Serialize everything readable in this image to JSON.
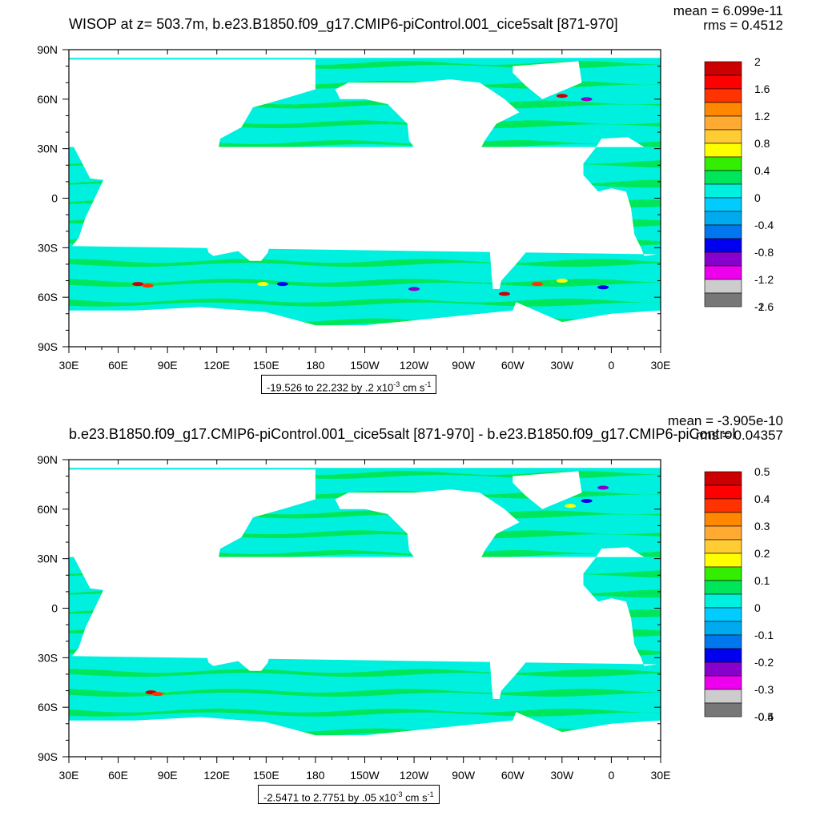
{
  "colors": {
    "land": "#ffffff",
    "ocean_neg": "#00f0e0",
    "ocean_pos": "#00e65a",
    "palette": [
      "#777777",
      "#cccccc",
      "#ee00ee",
      "#8800cc",
      "#0000ee",
      "#0077ee",
      "#00aaee",
      "#00ccff",
      "#00f0e0",
      "#00e65a",
      "#33ee00",
      "#ffff00",
      "#ffcc33",
      "#ffaa33",
      "#ff8800",
      "#ff3300",
      "#ff0000",
      "#cc0000"
    ]
  },
  "panels": [
    {
      "id": "top",
      "title": "WISOP at z= 503.7m, b.e23.B1850.f09_g17.CMIP6-piControl.001_cice5salt [871-970]",
      "mean": "mean = 6.099e-11",
      "rms": "rms = 0.4512",
      "range_prefix": "-19.526 to 22.232 by .2 x10",
      "range_exp": "-3",
      "range_unit": " cm s",
      "range_unit_exp": "-1",
      "colorbar_labels": [
        "2",
        "1.6",
        "1.2",
        "0.8",
        "0.4",
        "0",
        "-0.4",
        "-0.8",
        "-1.2",
        "-1.6",
        "-2"
      ]
    },
    {
      "id": "bottom",
      "title": "b.e23.B1850.f09_g17.CMIP6-piControl.001_cice5salt [871-970] - b.e23.B1850.f09_g17.CMIP6-piControl",
      "mean": "mean = -3.905e-10",
      "rms": "rms = 0.04357",
      "range_prefix": "-2.5471 to 2.7751 by .05 x10",
      "range_exp": "-3",
      "range_unit": " cm s",
      "range_unit_exp": "-1",
      "colorbar_labels": [
        "0.5",
        "0.4",
        "0.3",
        "0.2",
        "0.1",
        "0",
        "-0.1",
        "-0.2",
        "-0.3",
        "-0.4",
        "-0.5"
      ]
    }
  ],
  "chart_data": {
    "type": "heatmap",
    "projection": "cylindrical equidistant",
    "lon_range": [
      30,
      390
    ],
    "lat_range": [
      -90,
      90
    ],
    "x_tick_labels": [
      "30E",
      "60E",
      "90E",
      "120E",
      "150E",
      "180",
      "150W",
      "120W",
      "90W",
      "60W",
      "30W",
      "0",
      "30E"
    ],
    "y_tick_labels": [
      "90N",
      "60N",
      "30N",
      "0",
      "30S",
      "60S",
      "90S"
    ],
    "series": [
      {
        "levels_top": [
          -2,
          -1.8,
          -1.6,
          -1.4,
          -1.2,
          -1,
          -0.8,
          -0.6,
          -0.4,
          -0.2,
          0,
          0.2,
          0.4,
          0.6,
          0.8,
          1,
          1.2,
          1.4,
          1.6,
          1.8,
          2
        ]
      },
      {
        "levels_bottom": [
          -0.5,
          -0.45,
          -0.4,
          -0.35,
          -0.3,
          -0.25,
          -0.2,
          -0.15,
          -0.1,
          -0.05,
          0,
          0.05,
          0.1,
          0.15,
          0.2,
          0.25,
          0.3,
          0.35,
          0.4,
          0.45,
          0.5
        ]
      }
    ]
  }
}
